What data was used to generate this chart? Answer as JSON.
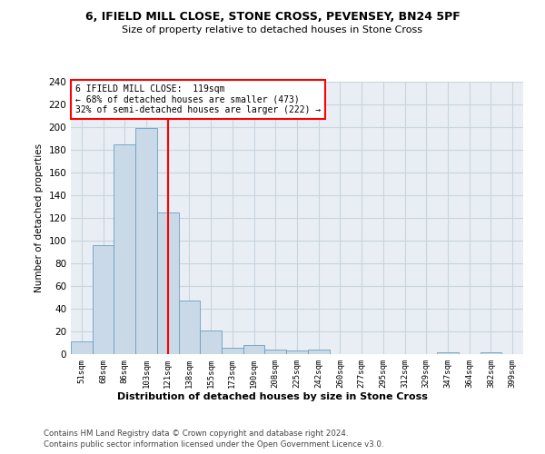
{
  "title1": "6, IFIELD MILL CLOSE, STONE CROSS, PEVENSEY, BN24 5PF",
  "title2": "Size of property relative to detached houses in Stone Cross",
  "xlabel": "Distribution of detached houses by size in Stone Cross",
  "ylabel": "Number of detached properties",
  "bar_labels": [
    "51sqm",
    "68sqm",
    "86sqm",
    "103sqm",
    "121sqm",
    "138sqm",
    "155sqm",
    "173sqm",
    "190sqm",
    "208sqm",
    "225sqm",
    "242sqm",
    "260sqm",
    "277sqm",
    "295sqm",
    "312sqm",
    "329sqm",
    "347sqm",
    "364sqm",
    "382sqm",
    "399sqm"
  ],
  "bar_values": [
    11,
    96,
    185,
    199,
    125,
    47,
    21,
    6,
    8,
    4,
    3,
    4,
    0,
    0,
    0,
    0,
    0,
    2,
    0,
    2,
    0
  ],
  "bar_color": "#c9d9e8",
  "bar_edgecolor": "#6a9fc0",
  "vline_x": 4,
  "vline_color": "red",
  "annotation_title": "6 IFIELD MILL CLOSE:  119sqm",
  "annotation_line1": "← 68% of detached houses are smaller (473)",
  "annotation_line2": "32% of semi-detached houses are larger (222) →",
  "annotation_box_color": "white",
  "annotation_box_edgecolor": "red",
  "ylim": [
    0,
    240
  ],
  "yticks": [
    0,
    20,
    40,
    60,
    80,
    100,
    120,
    140,
    160,
    180,
    200,
    220,
    240
  ],
  "footer1": "Contains HM Land Registry data © Crown copyright and database right 2024.",
  "footer2": "Contains public sector information licensed under the Open Government Licence v3.0.",
  "grid_color": "#c8d4de",
  "background_color": "#e8eef4"
}
